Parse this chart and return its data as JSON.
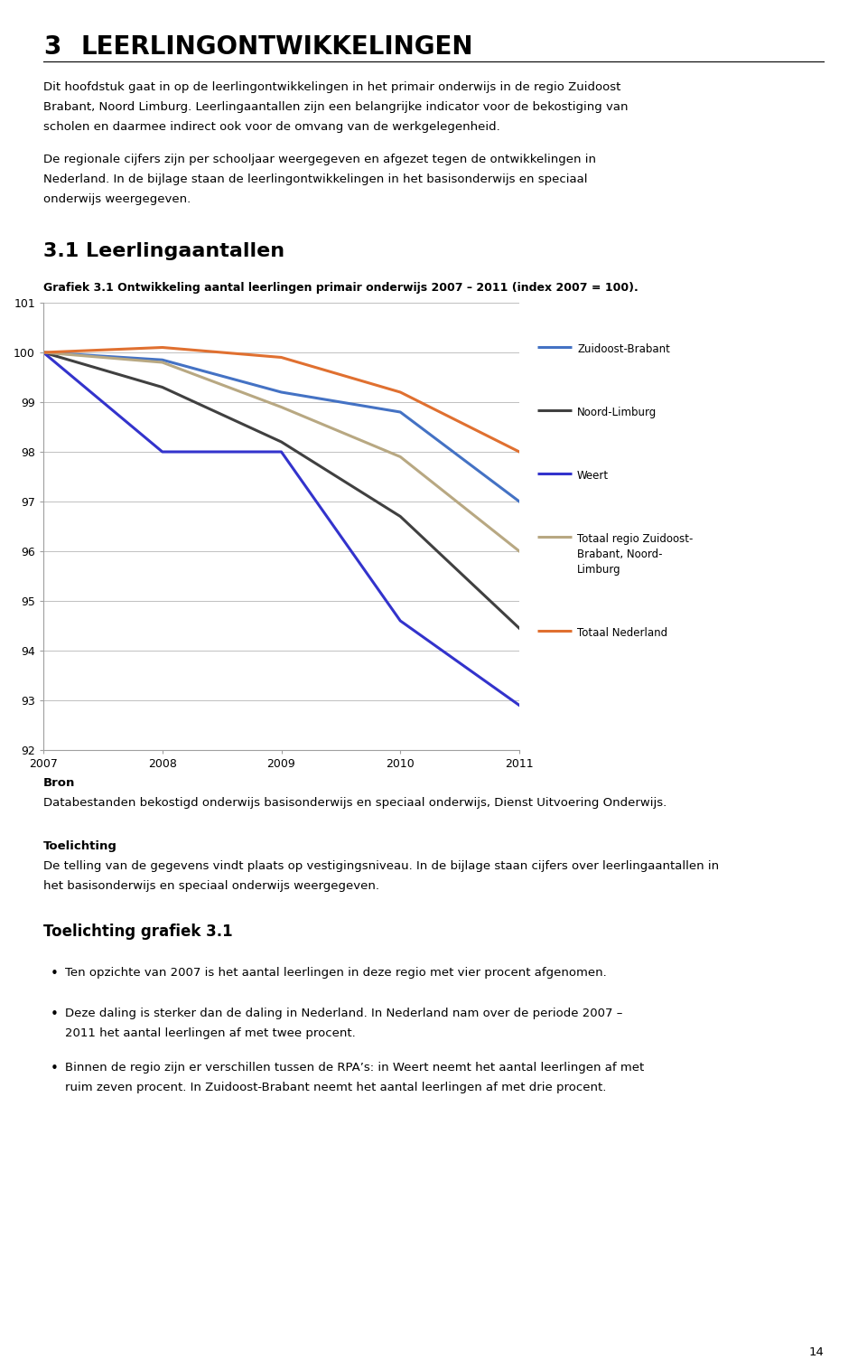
{
  "heading_num": "3",
  "heading_text": "LEERLINGONTWIKKELINGEN",
  "para1": "Dit hoofdstuk gaat in op de leerlingontwikkelingen in het primair onderwijs in de regio Zuidoost Brabant, Noord Limburg. Leerlingaantallen zijn een belangrijke indicator voor de bekostiging van scholen en daarmee indirect ook voor de omvang van de werkgelegenheid.",
  "para2": "De regionale cijfers zijn per schooljaar weergegeven en afgezet tegen de ontwikkelingen in Nederland. In de bijlage staan de leerlingontwikkelingen in het basisonderwijs en speciaal onderwijs weergegeven.",
  "section_title": "3.1 Leerlingaantallen",
  "grafiek_label": "Grafiek 3.1 Ontwikkeling aantal leerlingen primair onderwijs 2007 – 2011 (index 2007 = 100).",
  "years": [
    2007,
    2008,
    2009,
    2010,
    2011
  ],
  "series": {
    "Zuidoost-Brabant": {
      "values": [
        100.0,
        99.85,
        99.2,
        98.8,
        97.0
      ],
      "color": "#4472C4",
      "linewidth": 2.2
    },
    "Noord-Limburg": {
      "values": [
        100.0,
        99.3,
        98.2,
        96.7,
        94.45
      ],
      "color": "#404040",
      "linewidth": 2.2
    },
    "Weert": {
      "values": [
        100.0,
        98.0,
        98.0,
        94.6,
        92.9
      ],
      "color": "#3333CC",
      "linewidth": 2.2
    },
    "Totaal regio Zuidoost-Brabant, Noord-Limburg": {
      "values": [
        100.0,
        99.8,
        98.9,
        97.9,
        96.0
      ],
      "color": "#B8A882",
      "linewidth": 2.2
    },
    "Totaal Nederland": {
      "values": [
        100.0,
        100.1,
        99.9,
        99.2,
        98.0
      ],
      "color": "#E07030",
      "linewidth": 2.2
    }
  },
  "ylim": [
    92,
    101
  ],
  "yticks": [
    92,
    93,
    94,
    95,
    96,
    97,
    98,
    99,
    100,
    101
  ],
  "legend_items": [
    {
      "label": "Zuidoost-Brabant",
      "color": "#4472C4"
    },
    {
      "label": "Noord-Limburg",
      "color": "#404040"
    },
    {
      "label": "Weert",
      "color": "#3333CC"
    },
    {
      "label": "Totaal regio Zuidoost-\nBrabant, Noord-\nLimburg",
      "color": "#B8A882"
    },
    {
      "label": "Totaal Nederland",
      "color": "#E07030"
    }
  ],
  "bron_title": "Bron",
  "bron_text": "Databestanden bekostigd onderwijs basisonderwijs en speciaal onderwijs, Dienst Uitvoering Onderwijs.",
  "toelichting_title": "Toelichting",
  "toelichting_text": "De telling van de gegevens vindt plaats op vestigingsniveau. In de bijlage staan cijfers over leerlingaantallen in het basisonderwijs en speciaal onderwijs weergegeven.",
  "toelichting_grafiek_title": "Toelichting grafiek 3.1",
  "bullets": [
    "Ten opzichte van 2007 is het aantal leerlingen in deze regio met vier procent afgenomen.",
    "Deze daling is sterker dan de daling in Nederland. In Nederland nam over de periode 2007 – 2011 het aantal leerlingen af met twee procent.",
    "Binnen de regio zijn er verschillen tussen de RPA’s: in Weert neemt het aantal leerlingen af met ruim zeven procent. In Zuidoost-Brabant neemt het aantal leerlingen af met drie procent."
  ],
  "page_number": "14",
  "bg": "#ffffff",
  "fg": "#000000",
  "font_body": "DejaVu Sans",
  "font_mono": "DejaVu Sans"
}
